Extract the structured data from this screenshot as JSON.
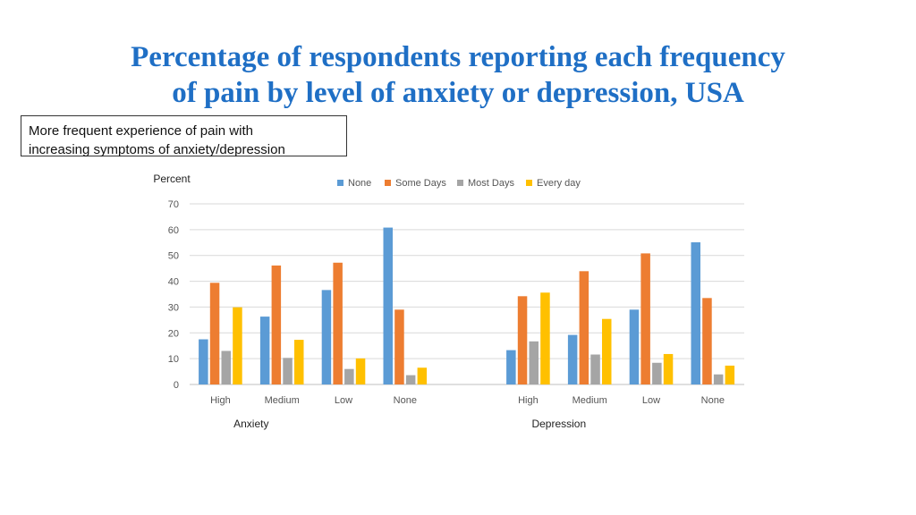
{
  "slide": {
    "title_line1": "Percentage of respondents reporting each frequency",
    "title_line2": "of pain by level of anxiety or depression, USA",
    "note_line1": "More frequent experience of pain with",
    "note_line2": "increasing symptoms of anxiety/depression"
  },
  "chart_data": {
    "type": "bar",
    "ylabel": "Percent",
    "ylim": [
      0,
      70
    ],
    "yticks": [
      0,
      10,
      20,
      30,
      40,
      50,
      60,
      70
    ],
    "grid": true,
    "legend_position": "top",
    "colors": [
      "#5b9bd5",
      "#ed7d31",
      "#a5a5a5",
      "#ffc000"
    ],
    "groups": [
      {
        "name": "Anxiety",
        "categories": [
          "High",
          "Medium",
          "Low",
          "None"
        ],
        "series": [
          {
            "name": "None",
            "values": [
              17.5,
              26.3,
              36.6,
              60.8
            ]
          },
          {
            "name": "Some Days",
            "values": [
              39.4,
              46.1,
              47.2,
              29.0
            ]
          },
          {
            "name": "Most Days",
            "values": [
              13.0,
              10.3,
              6.0,
              3.6
            ]
          },
          {
            "name": "Every day",
            "values": [
              29.9,
              17.3,
              10.1,
              6.5
            ]
          }
        ]
      },
      {
        "name": "Depression",
        "categories": [
          "High",
          "Medium",
          "Low",
          "None"
        ],
        "series": [
          {
            "name": "None",
            "values": [
              13.3,
              19.2,
              29.0,
              55.1
            ]
          },
          {
            "name": "Some Days",
            "values": [
              34.2,
              43.9,
              50.8,
              33.5
            ]
          },
          {
            "name": "Most Days",
            "values": [
              16.7,
              11.6,
              8.4,
              3.9
            ]
          },
          {
            "name": "Every day",
            "values": [
              35.6,
              25.4,
              11.8,
              7.3
            ]
          }
        ]
      }
    ]
  }
}
